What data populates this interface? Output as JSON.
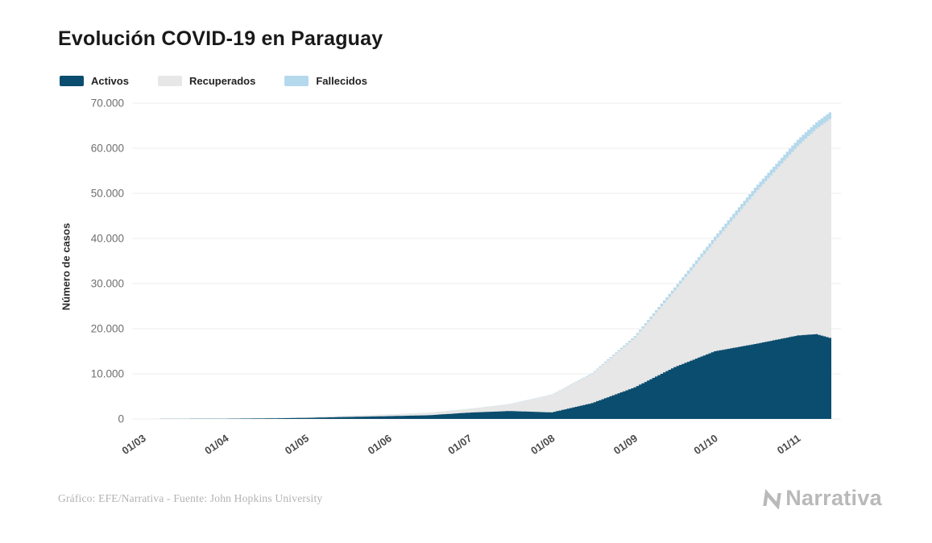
{
  "footer": {
    "credit": "Gráfico: EFE/Narrativa - Fuente: John Hopkins University",
    "logo_text": "Narrativa"
  },
  "chart_data": {
    "type": "area",
    "stacked": true,
    "title": "Evolución COVID-19 en Paraguay",
    "xlabel": "",
    "ylabel": "Número de casos",
    "ylim": [
      0,
      70000
    ],
    "grid": true,
    "legend_position": "top-left",
    "x_days": [
      0,
      15,
      31,
      46,
      61,
      75,
      92,
      107,
      122,
      137,
      153,
      168,
      184,
      199,
      214,
      229,
      245,
      252,
      258
    ],
    "x_ticks": [
      {
        "day": 0,
        "label": "01/03"
      },
      {
        "day": 31,
        "label": "01/04"
      },
      {
        "day": 61,
        "label": "01/05"
      },
      {
        "day": 92,
        "label": "01/06"
      },
      {
        "day": 122,
        "label": "01/07"
      },
      {
        "day": 153,
        "label": "01/08"
      },
      {
        "day": 184,
        "label": "01/09"
      },
      {
        "day": 214,
        "label": "01/10"
      },
      {
        "day": 245,
        "label": "01/11"
      }
    ],
    "y_ticks": [
      {
        "value": 0,
        "label": "0"
      },
      {
        "value": 10000,
        "label": "10.000"
      },
      {
        "value": 20000,
        "label": "20.000"
      },
      {
        "value": 30000,
        "label": "30.000"
      },
      {
        "value": 40000,
        "label": "40.000"
      },
      {
        "value": 50000,
        "label": "50.000"
      },
      {
        "value": 60000,
        "label": "60.000"
      },
      {
        "value": 70000,
        "label": "70.000"
      }
    ],
    "series": [
      {
        "name": "Activos",
        "color": "#0b4d6e",
        "values": [
          1,
          20,
          60,
          120,
          230,
          420,
          620,
          820,
          1400,
          1750,
          1450,
          3500,
          7000,
          11500,
          15000,
          16600,
          18500,
          18800,
          17800
        ]
      },
      {
        "name": "Recuperados",
        "color": "#e7e7e7",
        "values": [
          0,
          5,
          20,
          60,
          130,
          250,
          360,
          550,
          800,
          1500,
          3900,
          6500,
          11000,
          17000,
          24500,
          33500,
          42000,
          45500,
          49100
        ]
      },
      {
        "name": "Fallecidos",
        "color": "#b5d9ec",
        "values": [
          0,
          2,
          8,
          10,
          10,
          11,
          12,
          16,
          25,
          35,
          60,
          130,
          350,
          650,
          900,
          1150,
          1400,
          1450,
          1500
        ]
      }
    ]
  }
}
